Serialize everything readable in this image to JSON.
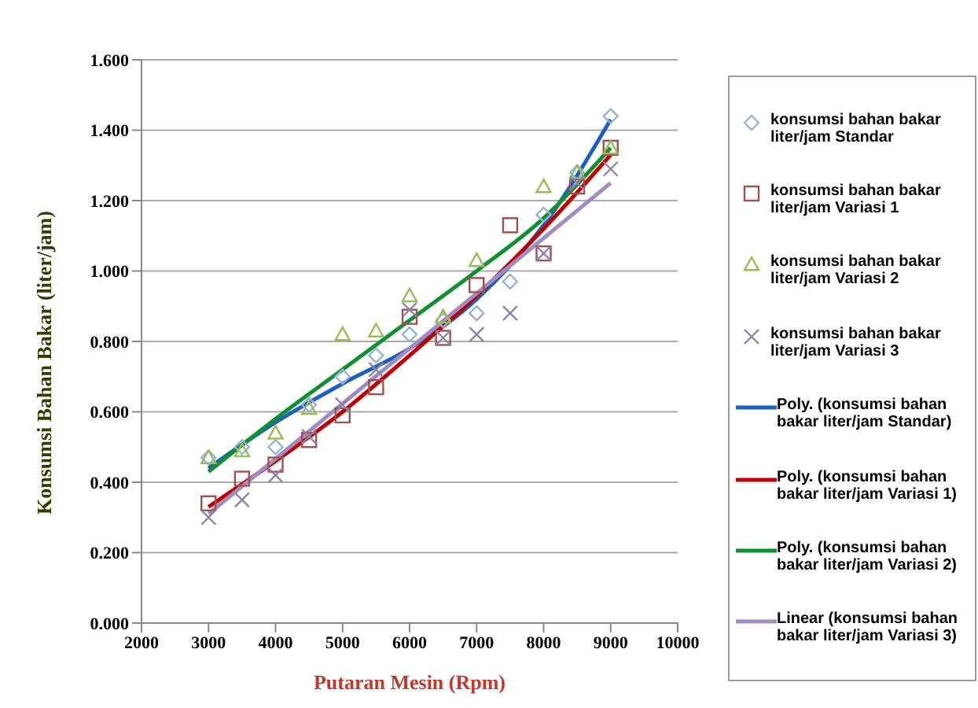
{
  "chart_data": {
    "type": "scatter",
    "xlabel": "Putaran Mesin (Rpm)",
    "ylabel": "Konsumsi Bahan Bakar  (liter/jam)",
    "xlim": [
      2000,
      10000
    ],
    "xticks": [
      2000,
      3000,
      4000,
      5000,
      6000,
      7000,
      8000,
      9000,
      10000
    ],
    "ylim": [
      0,
      1.6
    ],
    "yticks": [
      {
        "value": 0,
        "label": "0.000"
      },
      {
        "value": 0.2,
        "label": "0.200"
      },
      {
        "value": 0.4,
        "label": "0.400"
      },
      {
        "value": 0.6,
        "label": "0.600"
      },
      {
        "value": 0.8,
        "label": "0.800"
      },
      {
        "value": 1,
        "label": "1.000"
      },
      {
        "value": 1.2,
        "label": "1.200"
      },
      {
        "value": 1.4,
        "label": "1.400"
      },
      {
        "value": 1.6,
        "label": "1.600"
      }
    ],
    "grid": "y",
    "legend": "right",
    "x": [
      3000,
      3500,
      4000,
      4500,
      5000,
      5500,
      6000,
      6500,
      7000,
      7500,
      8000,
      8500,
      9000
    ],
    "series": [
      {
        "name": "konsumsi bahan bakar liter/jam Standar",
        "marker": "diamond",
        "color": "#95b3d7",
        "values": [
          0.47,
          0.5,
          0.5,
          0.62,
          0.7,
          0.76,
          0.82,
          0.86,
          0.88,
          0.97,
          1.16,
          1.28,
          1.44
        ]
      },
      {
        "name": "konsumsi bahan bakar liter/jam Variasi 1",
        "marker": "square",
        "color": "#a0504d",
        "values": [
          0.34,
          0.41,
          0.45,
          0.52,
          0.59,
          0.67,
          0.87,
          0.81,
          0.96,
          1.13,
          1.05,
          1.24,
          1.35
        ]
      },
      {
        "name": "konsumsi bahan bakar liter/jam Variasi 2",
        "marker": "triangle",
        "color": "#9bbb59",
        "values": [
          0.47,
          0.49,
          0.54,
          0.61,
          0.82,
          0.83,
          0.93,
          0.87,
          1.03,
          null,
          1.24,
          1.28,
          1.35
        ]
      },
      {
        "name": "konsumsi bahan bakar liter/jam Variasi 3",
        "marker": "cross",
        "color": "#8c84a8",
        "values": [
          0.3,
          0.35,
          0.42,
          0.53,
          0.62,
          0.72,
          0.89,
          0.81,
          0.82,
          0.88,
          1.05,
          1.25,
          1.29
        ]
      },
      {
        "name": "Poly. (konsumsi bahan bakar liter/jam Standar)",
        "type": "line",
        "color": "#1f5fbf",
        "x": [
          3000,
          4000,
          5000,
          6000,
          7000,
          8000,
          9000
        ],
        "values": [
          0.44,
          0.57,
          0.68,
          0.78,
          0.92,
          1.13,
          1.43
        ]
      },
      {
        "name": "Poly. (konsumsi bahan bakar liter/jam Variasi 1)",
        "type": "line",
        "color": "#c00000",
        "x": [
          3000,
          4000,
          5000,
          6000,
          7000,
          8000,
          9000
        ],
        "values": [
          0.33,
          0.46,
          0.6,
          0.76,
          0.93,
          1.12,
          1.33
        ]
      },
      {
        "name": "Poly. (konsumsi bahan bakar liter/jam Variasi 2)",
        "type": "line",
        "color": "#109030",
        "x": [
          3000,
          4000,
          5000,
          6000,
          7000,
          8000,
          9000
        ],
        "values": [
          0.43,
          0.58,
          0.72,
          0.86,
          1.0,
          1.15,
          1.35
        ]
      },
      {
        "name": "Linear (konsumsi bahan bakar liter/jam Variasi 3)",
        "type": "line",
        "color": "#a08cc0",
        "x": [
          3000,
          9000
        ],
        "values": [
          0.31,
          1.25
        ]
      }
    ]
  }
}
